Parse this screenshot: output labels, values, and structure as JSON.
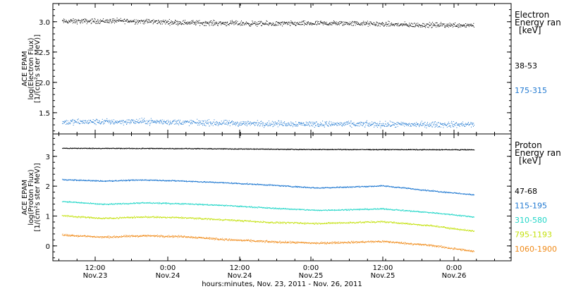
{
  "chart_data": [
    {
      "type": "scatter",
      "panel": "electron",
      "ylabel_lines": [
        "ACE EPAM",
        "log(Electron Flux)",
        "[1/(cm²s ster MeV)]"
      ],
      "yticks": [
        "1.5",
        "2.0",
        "2.5",
        "3.0"
      ],
      "ytick_values": [
        1.5,
        2.0,
        2.5,
        3.0
      ],
      "ylim": [
        1.15,
        3.3
      ],
      "legend_title": [
        "Electron",
        "Energy ran",
        "[keV]"
      ],
      "series": [
        {
          "name": "38-53",
          "color": "#000000",
          "level": 3.0,
          "noise": 0.06,
          "trend": [
            [
              0,
              3.01
            ],
            [
              0.15,
              3.02
            ],
            [
              0.3,
              2.99
            ],
            [
              0.5,
              2.97
            ],
            [
              0.7,
              2.98
            ],
            [
              0.85,
              2.95
            ],
            [
              1.0,
              2.95
            ]
          ]
        },
        {
          "name": "175-315",
          "color": "#1f78d1",
          "level": 1.32,
          "noise": 0.07,
          "trend": [
            [
              0,
              1.35
            ],
            [
              0.2,
              1.36
            ],
            [
              0.4,
              1.33
            ],
            [
              0.6,
              1.32
            ],
            [
              0.8,
              1.31
            ],
            [
              1.0,
              1.31
            ]
          ]
        }
      ]
    },
    {
      "type": "scatter",
      "panel": "proton",
      "ylabel_lines": [
        "ACE EPAM",
        "log(Proton Flux)",
        "[1/(cm²s ster MeV)]"
      ],
      "yticks": [
        "0",
        "1",
        "2",
        "3"
      ],
      "ytick_values": [
        0,
        1,
        2,
        3
      ],
      "ylim": [
        -0.5,
        3.75
      ],
      "legend_title": [
        "Proton",
        "Energy ran",
        "[keV]"
      ],
      "series": [
        {
          "name": "47-68",
          "color": "#000000",
          "noise": 0.02,
          "trend": [
            [
              0,
              3.28
            ],
            [
              0.3,
              3.27
            ],
            [
              0.6,
              3.24
            ],
            [
              1.0,
              3.23
            ]
          ]
        },
        {
          "name": "115-195",
          "color": "#1f78d1",
          "noise": 0.03,
          "trend": [
            [
              0,
              2.23
            ],
            [
              0.1,
              2.18
            ],
            [
              0.2,
              2.22
            ],
            [
              0.3,
              2.18
            ],
            [
              0.4,
              2.12
            ],
            [
              0.5,
              2.05
            ],
            [
              0.62,
              1.95
            ],
            [
              0.78,
              2.02
            ],
            [
              0.9,
              1.85
            ],
            [
              1.0,
              1.72
            ]
          ]
        },
        {
          "name": "310-580",
          "color": "#22d6c8",
          "noise": 0.03,
          "trend": [
            [
              0,
              1.5
            ],
            [
              0.1,
              1.4
            ],
            [
              0.2,
              1.45
            ],
            [
              0.3,
              1.42
            ],
            [
              0.4,
              1.36
            ],
            [
              0.5,
              1.28
            ],
            [
              0.62,
              1.2
            ],
            [
              0.78,
              1.25
            ],
            [
              0.9,
              1.12
            ],
            [
              1.0,
              0.98
            ]
          ]
        },
        {
          "name": "795-1193",
          "color": "#c4e10e",
          "noise": 0.04,
          "trend": [
            [
              0,
              1.02
            ],
            [
              0.1,
              0.93
            ],
            [
              0.2,
              0.98
            ],
            [
              0.3,
              0.95
            ],
            [
              0.4,
              0.88
            ],
            [
              0.5,
              0.8
            ],
            [
              0.62,
              0.76
            ],
            [
              0.78,
              0.82
            ],
            [
              0.9,
              0.68
            ],
            [
              1.0,
              0.5
            ]
          ]
        },
        {
          "name": "1060-1900",
          "color": "#f08a18",
          "noise": 0.05,
          "trend": [
            [
              0,
              0.38
            ],
            [
              0.1,
              0.3
            ],
            [
              0.2,
              0.35
            ],
            [
              0.3,
              0.32
            ],
            [
              0.4,
              0.22
            ],
            [
              0.5,
              0.15
            ],
            [
              0.62,
              0.1
            ],
            [
              0.78,
              0.16
            ],
            [
              0.9,
              0.02
            ],
            [
              1.0,
              -0.18
            ]
          ]
        }
      ]
    }
  ],
  "xaxis": {
    "ticks": [
      {
        "time": "12:00",
        "date": "Nov.23"
      },
      {
        "time": "0:00",
        "date": "Nov.24"
      },
      {
        "time": "12:00",
        "date": "Nov.24"
      },
      {
        "time": "0:00",
        "date": "Nov.25"
      },
      {
        "time": "12:00",
        "date": "Nov.25"
      },
      {
        "time": "0:00",
        "date": "Nov.26"
      }
    ],
    "label": "hours:minutes, Nov. 23, 2011 - Nov. 26, 2011"
  }
}
